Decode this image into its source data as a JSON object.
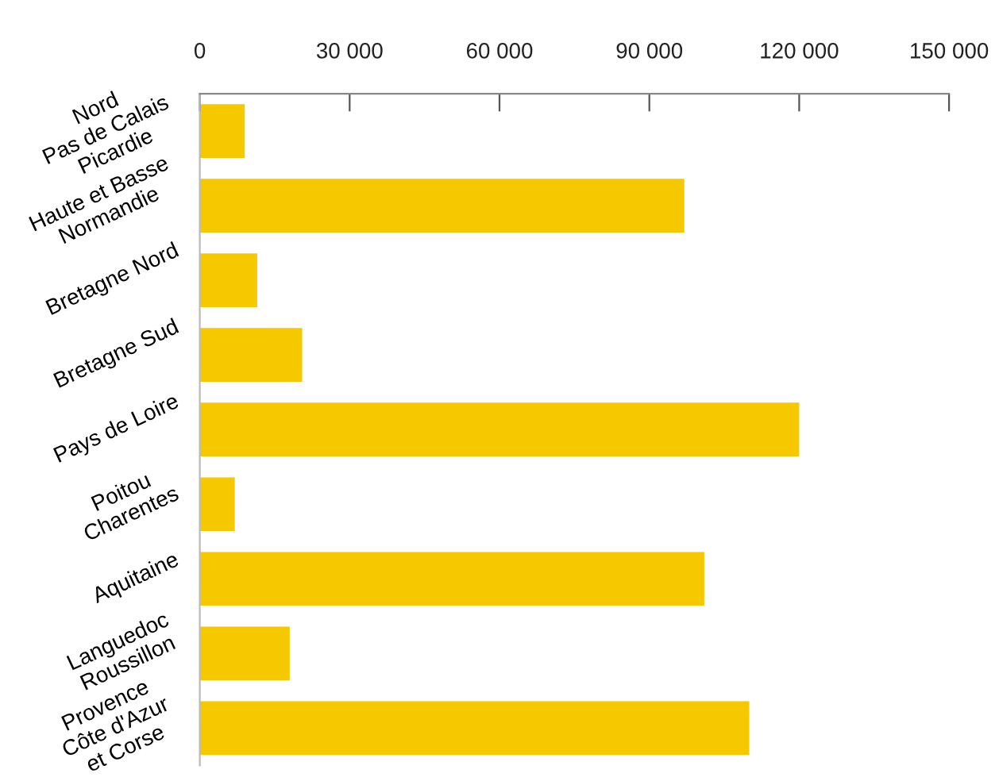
{
  "chart_data": {
    "type": "bar",
    "orientation": "horizontal",
    "categories": [
      "Nord\nPas de Calais\nPicardie",
      "Haute et Basse\nNormandie",
      "Bretagne Nord",
      "Bretagne Sud",
      "Pays de Loire",
      "Poitou\nCharentes",
      "Aquitaine",
      "Languedoc\nRoussillon",
      "Provence\nCôte d'Azur\net Corse"
    ],
    "values": [
      9000,
      97000,
      11500,
      20500,
      120000,
      7000,
      101000,
      18000,
      110000
    ],
    "color": "#f5c800",
    "xlim": [
      0,
      150000
    ],
    "xticks": [
      0,
      {
        "value": 30000,
        "label": "30 000"
      },
      {
        "value": 60000,
        "label": "60 000"
      },
      {
        "value": 90000,
        "label": "90 000"
      },
      {
        "value": 120000,
        "label": "120 000"
      },
      {
        "value": 150000,
        "label": "150 000"
      }
    ],
    "grid": false,
    "legend": false
  }
}
